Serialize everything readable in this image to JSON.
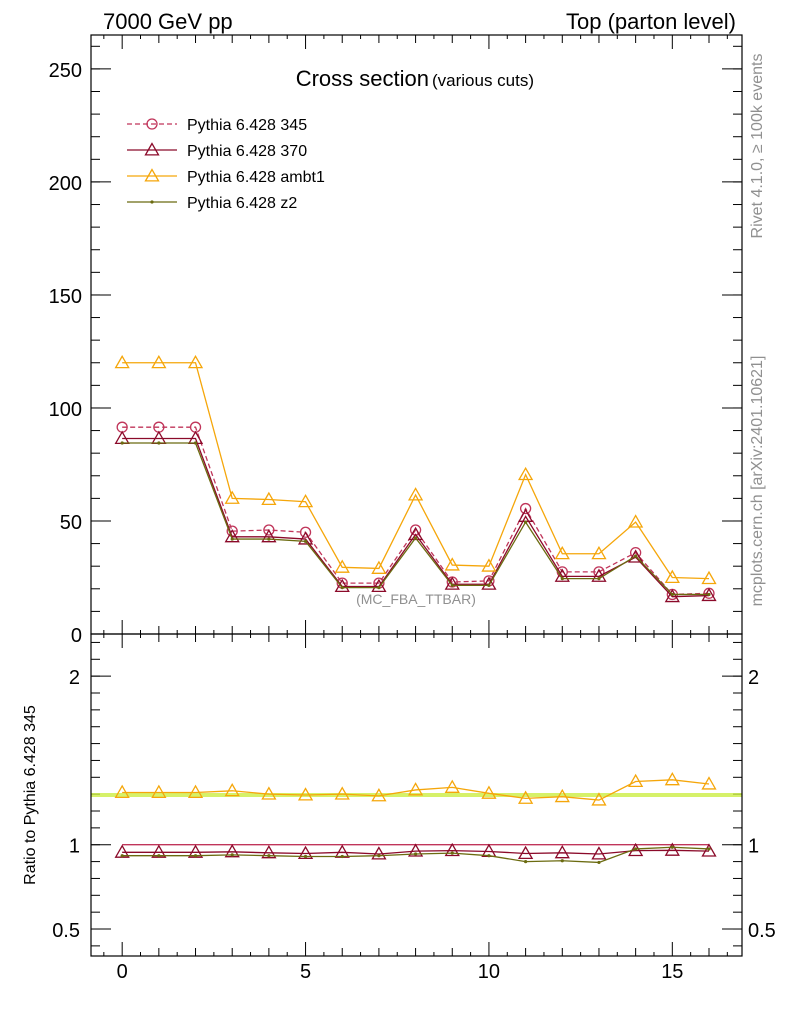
{
  "header": {
    "left_label": "7000 GeV pp",
    "right_label": "Top (parton level)"
  },
  "side_labels": {
    "rivet": "Rivet 4.1.0, ≥ 100k events",
    "mcplots": "mcplots.cern.ch [arXiv:2401.10621]"
  },
  "colors": {
    "pythia_345": "#c0355a",
    "pythia_370": "#8b0a2a",
    "pythia_ambt1": "#f5a60a",
    "pythia_z2": "#6b6b10",
    "reference_band": "#ccee44",
    "watermark": "#909090"
  },
  "chart_data": [
    {
      "type": "line",
      "panel": "main",
      "title": "Cross section",
      "subtitle": "(various cuts)",
      "watermark": "(MC_FBA_TTBAR)",
      "xlabel": "",
      "ylabel": "",
      "xlim": [
        -0.85,
        16.9
      ],
      "ylim": [
        0,
        265
      ],
      "yticks": [
        0,
        50,
        100,
        150,
        200,
        250
      ],
      "ytick_labels": [
        "0",
        "50",
        "100",
        "150",
        "200",
        "250"
      ],
      "xticks": [
        0,
        5,
        10,
        15
      ],
      "x": [
        0,
        1,
        2,
        3,
        4,
        5,
        6,
        7,
        8,
        9,
        10,
        11,
        12,
        13,
        14,
        15,
        16
      ],
      "legend_position": "top-left",
      "series": [
        {
          "name": "Pythia 6.428 345",
          "style": "dashed",
          "marker": "circle",
          "color_key": "pythia_345",
          "values": [
            91.5,
            91.5,
            91.5,
            45.5,
            46,
            45,
            22.5,
            22.5,
            46,
            23,
            23.5,
            55.5,
            27.5,
            27.5,
            36,
            17.5,
            18
          ]
        },
        {
          "name": "Pythia 6.428 370",
          "style": "solid",
          "marker": "triangle",
          "color_key": "pythia_370",
          "values": [
            86.5,
            86.5,
            86.5,
            43,
            43,
            42,
            21,
            21,
            44,
            22,
            22,
            52,
            25.5,
            25.5,
            34,
            16.5,
            17
          ]
        },
        {
          "name": "Pythia 6.428 ambt1",
          "style": "solid",
          "marker": "triangle",
          "color_key": "pythia_ambt1",
          "values": [
            120,
            120,
            120,
            60,
            59.5,
            58.5,
            29.5,
            29,
            61.5,
            30.5,
            30,
            70.5,
            35.5,
            35.5,
            49.5,
            25,
            24.5
          ]
        },
        {
          "name": "Pythia 6.428 z2",
          "style": "solid",
          "marker": "dot",
          "color_key": "pythia_z2",
          "values": [
            84.5,
            84.5,
            84.5,
            42,
            42,
            41,
            20.5,
            20.5,
            42.5,
            21.5,
            21.5,
            49.5,
            24.5,
            24.5,
            34.5,
            17.5,
            17.5
          ]
        }
      ]
    },
    {
      "type": "line",
      "panel": "ratio",
      "ylabel": "Ratio to Pythia 6.428 345",
      "xlim": [
        -0.85,
        16.9
      ],
      "ylim": [
        0.34,
        2.25
      ],
      "yticks": [
        0.5,
        1,
        2
      ],
      "ytick_labels": [
        "0.5",
        "1",
        "2"
      ],
      "xticks": [
        0,
        5,
        10,
        15
      ],
      "xtick_labels": [
        "0",
        "5",
        "10",
        "15"
      ],
      "x": [
        0,
        1,
        2,
        3,
        4,
        5,
        6,
        7,
        8,
        9,
        10,
        11,
        12,
        13,
        14,
        15,
        16
      ],
      "series": [
        {
          "name": "Pythia 6.428 345",
          "style": "solid",
          "marker": "none",
          "color_key": "pythia_345",
          "values": [
            1,
            1,
            1,
            1,
            1,
            1,
            1,
            1,
            1,
            1,
            1,
            1,
            1,
            1,
            1,
            1,
            1
          ]
        },
        {
          "name": "Pythia 6.428 370",
          "style": "solid",
          "marker": "triangle",
          "color_key": "pythia_370",
          "values": [
            0.955,
            0.955,
            0.955,
            0.958,
            0.952,
            0.948,
            0.955,
            0.945,
            0.962,
            0.965,
            0.96,
            0.948,
            0.952,
            0.945,
            0.965,
            0.967,
            0.962
          ]
        },
        {
          "name": "Pythia 6.428 ambt1",
          "style": "solid",
          "marker": "triangle",
          "color_key": "pythia_ambt1",
          "values": [
            1.31,
            1.31,
            1.31,
            1.32,
            1.3,
            1.295,
            1.3,
            1.29,
            1.325,
            1.34,
            1.305,
            1.275,
            1.285,
            1.265,
            1.375,
            1.385,
            1.36
          ]
        },
        {
          "name": "Pythia 6.428 z2",
          "style": "solid",
          "marker": "dot",
          "color_key": "pythia_z2",
          "values": [
            0.935,
            0.935,
            0.935,
            0.94,
            0.935,
            0.93,
            0.93,
            0.935,
            0.945,
            0.95,
            0.935,
            0.9,
            0.905,
            0.895,
            0.975,
            0.985,
            0.975
          ]
        }
      ]
    }
  ]
}
